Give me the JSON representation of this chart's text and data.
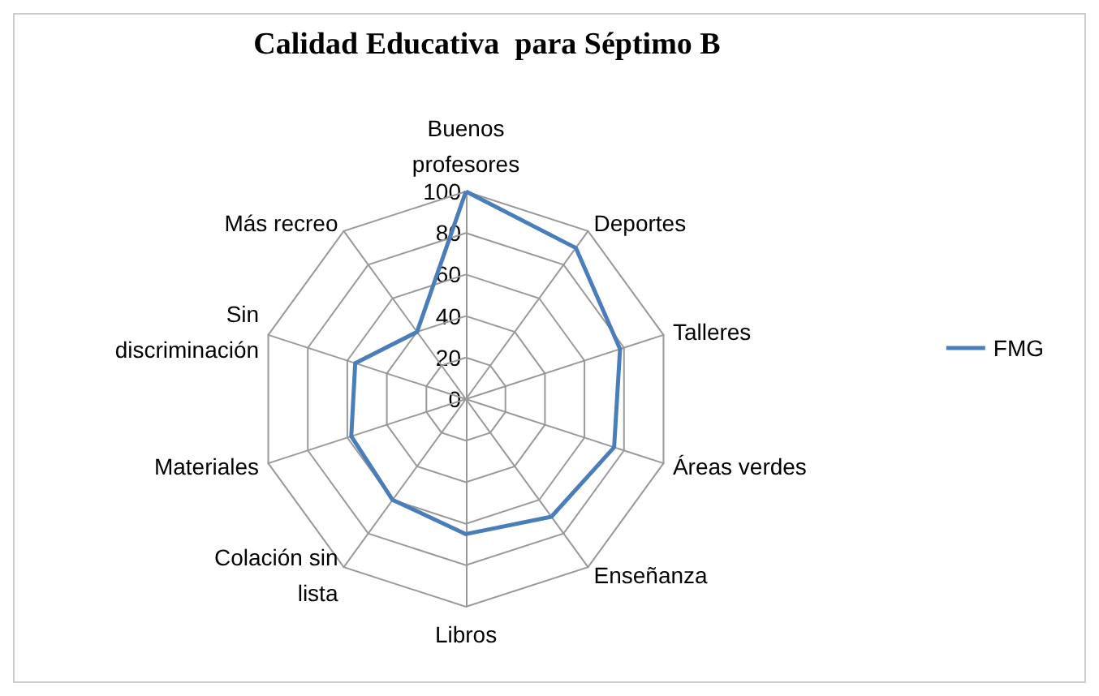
{
  "chart_data": {
    "type": "radar",
    "title": "Calidad Educativa  para Séptimo B",
    "categories": [
      "Buenos\nprofesores",
      "Deportes",
      "Talleres",
      "Áreas verdes",
      "Enseñanza",
      "Libros",
      "Colación sin\nlista",
      "Materiales",
      "Sin\ndiscriminación",
      "Más recreo"
    ],
    "series": [
      {
        "name": "FMG",
        "color": "#4a7ebb",
        "values": [
          100,
          90,
          78,
          75,
          70,
          65,
          60,
          58,
          56,
          40
        ]
      }
    ],
    "ylim": [
      0,
      100
    ],
    "yticks": [
      0,
      20,
      40,
      60,
      80,
      100
    ],
    "legend": "right",
    "marker": "none"
  }
}
